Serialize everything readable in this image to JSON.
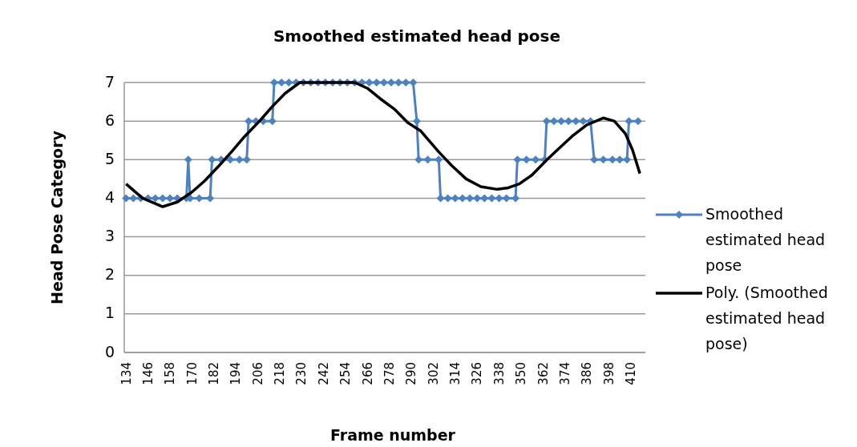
{
  "chart_data": {
    "type": "line",
    "title": "Smoothed estimated head pose",
    "xlabel": "Frame number",
    "ylabel": "Head Pose Category",
    "xlim": [
      133,
      418
    ],
    "xticks": [
      134,
      146,
      158,
      170,
      182,
      194,
      206,
      218,
      230,
      242,
      254,
      266,
      278,
      290,
      302,
      314,
      326,
      338,
      350,
      362,
      374,
      386,
      398,
      410
    ],
    "ylim": [
      0,
      7
    ],
    "yticks": [
      0,
      1,
      2,
      3,
      4,
      5,
      6,
      7
    ],
    "grid": "y",
    "legend": "right",
    "series": [
      {
        "name": "Smoothed estimated head pose",
        "color": "#4f81bd",
        "marker": "diamond",
        "line_style": "solid",
        "x": [
          134,
          138,
          142,
          146,
          150,
          154,
          158,
          162,
          167,
          168,
          169,
          174,
          180,
          181,
          186,
          191,
          196,
          200,
          201,
          205,
          209,
          214,
          215,
          219,
          223,
          227,
          231,
          235,
          239,
          243,
          247,
          251,
          255,
          259,
          263,
          267,
          271,
          275,
          279,
          283,
          287,
          291,
          293,
          294,
          299,
          305,
          306,
          310,
          314,
          318,
          322,
          326,
          330,
          334,
          338,
          342,
          347,
          348,
          353,
          358,
          363,
          364,
          368,
          372,
          376,
          380,
          384,
          388,
          390,
          395,
          400,
          404,
          408,
          409,
          414
        ],
        "values": [
          4,
          4,
          4,
          4,
          4,
          4,
          4,
          4,
          4,
          5,
          4,
          4,
          4,
          5,
          5,
          5,
          5,
          5,
          6,
          6,
          6,
          6,
          7,
          7,
          7,
          7,
          7,
          7,
          7,
          7,
          7,
          7,
          7,
          7,
          7,
          7,
          7,
          7,
          7,
          7,
          7,
          7,
          6,
          5,
          5,
          5,
          4,
          4,
          4,
          4,
          4,
          4,
          4,
          4,
          4,
          4,
          4,
          5,
          5,
          5,
          5,
          6,
          6,
          6,
          6,
          6,
          6,
          6,
          5,
          5,
          5,
          5,
          5,
          6,
          6
        ]
      },
      {
        "name": "Poly. (Smoothed estimated head pose)",
        "color": "#000000",
        "marker": "none",
        "line_style": "solid",
        "x": [
          134,
          143,
          154,
          162,
          170,
          177,
          185,
          192,
          199,
          207,
          214,
          221,
          229,
          236,
          244,
          252,
          259,
          266,
          273,
          281,
          288,
          295,
          305,
          312,
          320,
          328,
          337,
          343,
          349,
          356,
          364,
          371,
          378,
          386,
          395,
          401,
          407,
          411,
          415
        ],
        "values": [
          4.37,
          4.0,
          3.78,
          3.9,
          4.16,
          4.45,
          4.85,
          5.22,
          5.61,
          6.0,
          6.38,
          6.72,
          7.0,
          7.0,
          7.0,
          7.0,
          7.0,
          6.85,
          6.58,
          6.3,
          5.96,
          5.75,
          5.2,
          4.85,
          4.5,
          4.3,
          4.23,
          4.27,
          4.37,
          4.6,
          4.99,
          5.3,
          5.61,
          5.9,
          6.08,
          6.0,
          5.68,
          5.25,
          4.64
        ]
      }
    ]
  }
}
